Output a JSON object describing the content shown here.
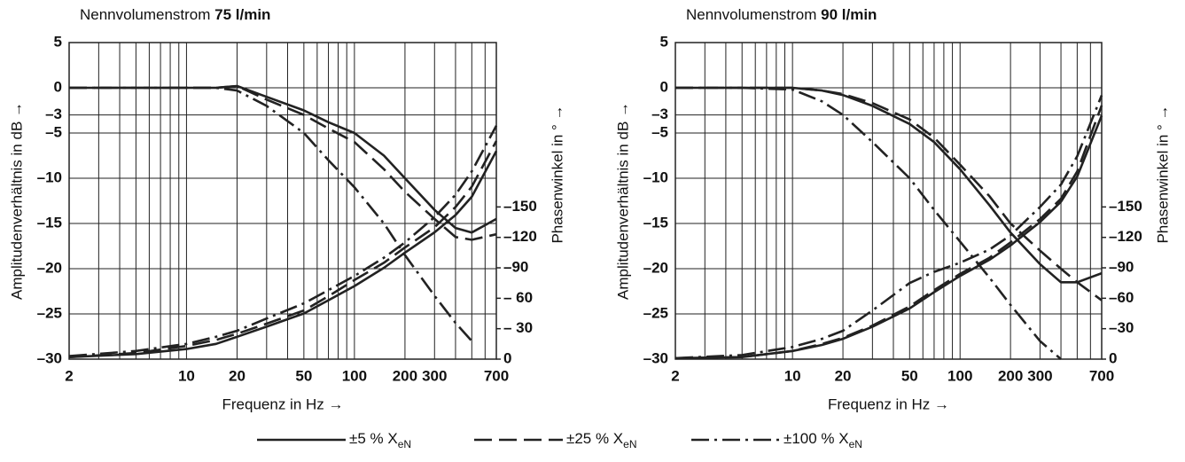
{
  "chart_data": [
    {
      "type": "line",
      "title": "Nennvolumenstrom",
      "title_bold": "75 l/min",
      "xlabel": "Frequenz in Hz →",
      "ylabel": "Amplitudenverhältnis in dB →",
      "y2label": "Phasenwinkel in ° →",
      "log_x": true,
      "grid": true,
      "xlim": [
        2,
        700
      ],
      "xticks": [
        2,
        10,
        20,
        50,
        100,
        200,
        300,
        700
      ],
      "xgrid": [
        2,
        3,
        4,
        5,
        6,
        7,
        8,
        9,
        10,
        20,
        30,
        40,
        50,
        60,
        70,
        80,
        90,
        100,
        200,
        300,
        400,
        500,
        600,
        700
      ],
      "ylim": [
        -30,
        5
      ],
      "yticks": [
        5,
        0,
        {
          "value": -3,
          "label": "–3"
        },
        {
          "value": -5,
          "label": "–5"
        },
        {
          "value": -10,
          "label": "–10"
        },
        {
          "value": -15,
          "label": "–15"
        },
        {
          "value": -20,
          "label": "–20"
        },
        {
          "value": -25,
          "label": "–25"
        },
        {
          "value": -30,
          "label": "–30"
        }
      ],
      "y2lim": [
        0,
        -312
      ],
      "y2ticks": [
        {
          "value": -150,
          "label": "–150"
        },
        {
          "value": -120,
          "label": "–120"
        },
        {
          "value": -90,
          "label": "–90"
        },
        {
          "value": -60,
          "label": "– 60"
        },
        {
          "value": -30,
          "label": "– 30"
        },
        0
      ],
      "x": [
        2,
        5,
        10,
        15,
        20,
        30,
        50,
        70,
        100,
        150,
        200,
        300,
        400,
        500,
        700
      ],
      "series": [
        {
          "style": 0,
          "color": "#222222",
          "values": [
            0,
            0,
            0,
            0,
            0.2,
            -1,
            -2.5,
            -3.8,
            -5,
            -7.5,
            -10,
            -13.5,
            -15.5,
            -16,
            -14.5
          ]
        },
        {
          "style": 1,
          "color": "#222222",
          "values": [
            0,
            0,
            0,
            0,
            0.2,
            -1.3,
            -3,
            -4.5,
            -6,
            -9,
            -11.5,
            -14.5,
            -16.5,
            -16.8,
            -16.2
          ]
        },
        {
          "style": 2,
          "color": "#222222",
          "values": [
            0,
            0,
            0,
            0,
            -0.3,
            -2,
            -5,
            -8,
            -11,
            -15,
            -18.5,
            -23,
            -26,
            -28,
            null
          ]
        },
        {
          "style": 0,
          "color": "#222222",
          "axis": "y2",
          "values": [
            -2,
            -5,
            -10,
            -15,
            -22,
            -32,
            -45,
            -58,
            -72,
            -90,
            -105,
            -125,
            -142,
            -160,
            -205
          ]
        },
        {
          "style": 1,
          "color": "#222222",
          "axis": "y2",
          "values": [
            -2,
            -6,
            -13,
            -19,
            -25,
            -35,
            -48,
            -62,
            -78,
            -95,
            -110,
            -130,
            -150,
            -170,
            -215
          ]
        },
        {
          "style": 2,
          "color": "#222222",
          "axis": "y2",
          "values": [
            -3,
            -8,
            -15,
            -22,
            -28,
            -40,
            -55,
            -68,
            -82,
            -100,
            -115,
            -140,
            -162,
            -185,
            -230
          ]
        }
      ]
    },
    {
      "type": "line",
      "title": "Nennvolumenstrom",
      "title_bold": "90 l/min",
      "xlabel": "Frequenz in Hz →",
      "ylabel": "Amplitudenverhältnis in dB →",
      "y2label": "Phasenwinkel in ° →",
      "log_x": true,
      "grid": true,
      "xlim": [
        2,
        700
      ],
      "xticks": [
        2,
        10,
        20,
        50,
        100,
        200,
        300,
        700
      ],
      "xgrid": [
        2,
        3,
        4,
        5,
        6,
        7,
        8,
        9,
        10,
        20,
        30,
        40,
        50,
        60,
        70,
        80,
        90,
        100,
        200,
        300,
        400,
        500,
        600,
        700
      ],
      "ylim": [
        -30,
        5
      ],
      "yticks": [
        5,
        0,
        {
          "value": -3,
          "label": "–3"
        },
        {
          "value": -5,
          "label": "–5"
        },
        {
          "value": -10,
          "label": "–10"
        },
        {
          "value": -15,
          "label": "–15"
        },
        {
          "value": -20,
          "label": "–20"
        },
        {
          "value": -25,
          "label": "–25"
        },
        {
          "value": -30,
          "label": "–30"
        }
      ],
      "y2lim": [
        0,
        -312
      ],
      "y2ticks": [
        {
          "value": -150,
          "label": "–150"
        },
        {
          "value": -120,
          "label": "–120"
        },
        {
          "value": -90,
          "label": "–90"
        },
        {
          "value": -60,
          "label": "–60"
        },
        {
          "value": -30,
          "label": "–30"
        },
        0
      ],
      "x": [
        2,
        5,
        10,
        15,
        20,
        30,
        50,
        70,
        100,
        150,
        200,
        300,
        400,
        500,
        700
      ],
      "series": [
        {
          "style": 0,
          "color": "#222222",
          "values": [
            0,
            0,
            0,
            -0.3,
            -0.8,
            -2,
            -4,
            -6,
            -9,
            -13,
            -16,
            -19.5,
            -21.5,
            -21.5,
            -20.5
          ]
        },
        {
          "style": 1,
          "color": "#222222",
          "values": [
            0,
            0,
            0,
            -0.3,
            -0.7,
            -1.7,
            -3.5,
            -5.5,
            -8.5,
            -12,
            -15,
            -18,
            -20,
            -21.5,
            -23.5
          ]
        },
        {
          "style": 2,
          "color": "#222222",
          "values": [
            0,
            0,
            -0.2,
            -1.5,
            -3,
            -6,
            -10,
            -13.5,
            -17,
            -21,
            -24,
            -28,
            -30,
            null,
            null
          ]
        },
        {
          "style": 0,
          "color": "#222222",
          "axis": "y2",
          "values": [
            -1,
            -2,
            -8,
            -14,
            -20,
            -32,
            -50,
            -66,
            -82,
            -98,
            -112,
            -135,
            -155,
            -180,
            -240
          ]
        },
        {
          "style": 1,
          "color": "#222222",
          "axis": "y2",
          "values": [
            -1,
            -2,
            -8,
            -15,
            -21,
            -33,
            -52,
            -68,
            -84,
            -100,
            -115,
            -138,
            -158,
            -185,
            -250
          ]
        },
        {
          "style": 2,
          "color": "#222222",
          "axis": "y2",
          "values": [
            -1,
            -4,
            -12,
            -20,
            -28,
            -48,
            -75,
            -86,
            -95,
            -108,
            -122,
            -150,
            -172,
            -200,
            -260
          ]
        }
      ]
    }
  ],
  "legend": [
    {
      "name": "±5 % X",
      "sub": "eN"
    },
    {
      "name": "±25 % X",
      "sub": "eN"
    },
    {
      "name": "±100 % X",
      "sub": "eN"
    }
  ]
}
